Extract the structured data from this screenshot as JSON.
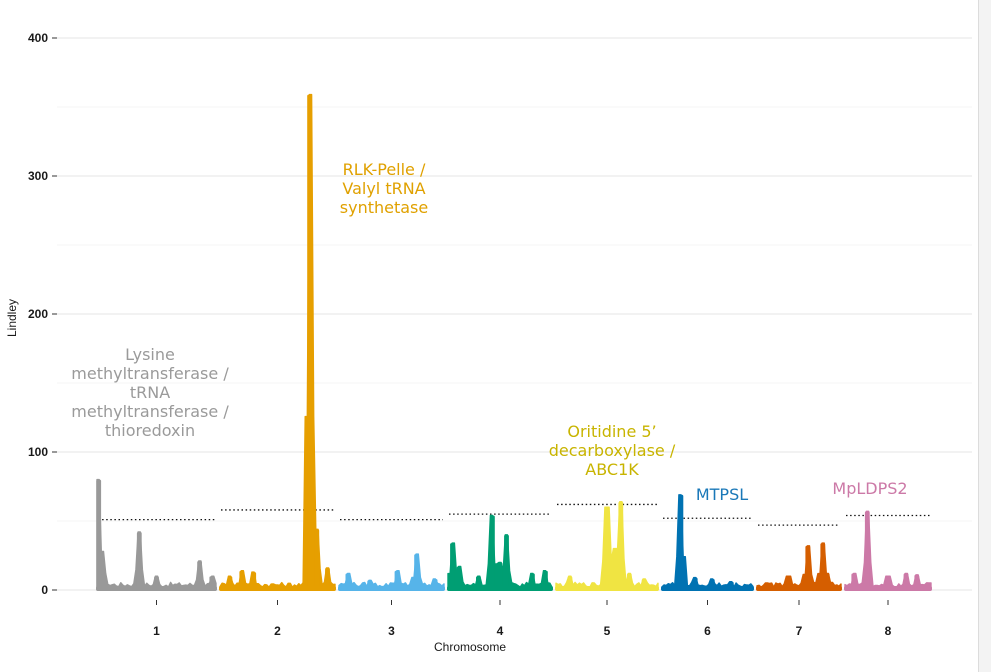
{
  "chart_data": {
    "type": "manhattan",
    "title": "",
    "xlabel": "Chromosome",
    "ylabel": "Lindley",
    "ylim": [
      0,
      400
    ],
    "yticks": [
      0,
      100,
      200,
      300,
      400
    ],
    "grid": true,
    "chromosomes": [
      {
        "label": "1",
        "color": "#999999",
        "threshold": 51,
        "peaks": [
          {
            "pos": 0.03,
            "value": 80
          },
          {
            "pos": 0.07,
            "value": 12
          },
          {
            "pos": 0.36,
            "value": 42
          },
          {
            "pos": 0.5,
            "value": 10
          },
          {
            "pos": 0.85,
            "value": 21
          },
          {
            "pos": 0.95,
            "value": 10
          }
        ]
      },
      {
        "label": "2",
        "color": "#E69F00",
        "threshold": 58,
        "peaks": [
          {
            "pos": 0.1,
            "value": 10
          },
          {
            "pos": 0.2,
            "value": 14
          },
          {
            "pos": 0.3,
            "value": 13
          },
          {
            "pos": 0.77,
            "value": 359
          },
          {
            "pos": 0.83,
            "value": 44
          },
          {
            "pos": 0.92,
            "value": 16
          }
        ]
      },
      {
        "label": "3",
        "color": "#56B4E9",
        "threshold": 51,
        "peaks": [
          {
            "pos": 0.1,
            "value": 12
          },
          {
            "pos": 0.3,
            "value": 7
          },
          {
            "pos": 0.55,
            "value": 14
          },
          {
            "pos": 0.73,
            "value": 26
          },
          {
            "pos": 0.9,
            "value": 8
          }
        ]
      },
      {
        "label": "4",
        "color": "#009E73",
        "threshold": 55,
        "peaks": [
          {
            "pos": 0.06,
            "value": 34
          },
          {
            "pos": 0.12,
            "value": 17
          },
          {
            "pos": 0.3,
            "value": 10
          },
          {
            "pos": 0.43,
            "value": 54
          },
          {
            "pos": 0.5,
            "value": 20
          },
          {
            "pos": 0.56,
            "value": 40
          },
          {
            "pos": 0.8,
            "value": 12
          },
          {
            "pos": 0.92,
            "value": 14
          }
        ]
      },
      {
        "label": "5",
        "color": "#F0E442",
        "threshold": 62,
        "peaks": [
          {
            "pos": 0.15,
            "value": 10
          },
          {
            "pos": 0.5,
            "value": 60
          },
          {
            "pos": 0.58,
            "value": 30
          },
          {
            "pos": 0.63,
            "value": 64
          },
          {
            "pos": 0.71,
            "value": 12
          },
          {
            "pos": 0.85,
            "value": 8
          }
        ]
      },
      {
        "label": "6",
        "color": "#0072B2",
        "threshold": 52,
        "peaks": [
          {
            "pos": 0.22,
            "value": 69
          },
          {
            "pos": 0.37,
            "value": 9
          },
          {
            "pos": 0.55,
            "value": 8
          },
          {
            "pos": 0.75,
            "value": 6
          }
        ]
      },
      {
        "label": "7",
        "color": "#D55E00",
        "threshold": 47,
        "peaks": [
          {
            "pos": 0.38,
            "value": 10
          },
          {
            "pos": 0.6,
            "value": 32
          },
          {
            "pos": 0.77,
            "value": 34
          },
          {
            "pos": 0.82,
            "value": 12
          }
        ]
      },
      {
        "label": "8",
        "color": "#CC79A7",
        "threshold": 54,
        "peaks": [
          {
            "pos": 0.12,
            "value": 12
          },
          {
            "pos": 0.27,
            "value": 57
          },
          {
            "pos": 0.5,
            "value": 10
          },
          {
            "pos": 0.7,
            "value": 12
          },
          {
            "pos": 0.82,
            "value": 11
          }
        ]
      }
    ],
    "annotations": [
      {
        "chromosome": "1",
        "color": "#9a9a9a",
        "lines": [
          "Lysine",
          "methyltransferase /",
          "tRNA",
          "methyltransferase /",
          "thioredoxin"
        ]
      },
      {
        "chromosome": "2",
        "color": "#E0A100",
        "lines": [
          "RLK-Pelle /",
          "Valyl tRNA",
          "synthetase"
        ]
      },
      {
        "chromosome": "5",
        "color": "#C8B400",
        "lines": [
          "Oritidine 5’",
          "decarboxylase /",
          "ABC1K"
        ]
      },
      {
        "chromosome": "6",
        "color": "#1a78b8",
        "lines": [
          "MTPSL"
        ]
      },
      {
        "chromosome": "8",
        "color": "#CC79A7",
        "lines": [
          "MpLDPS2"
        ]
      }
    ]
  }
}
